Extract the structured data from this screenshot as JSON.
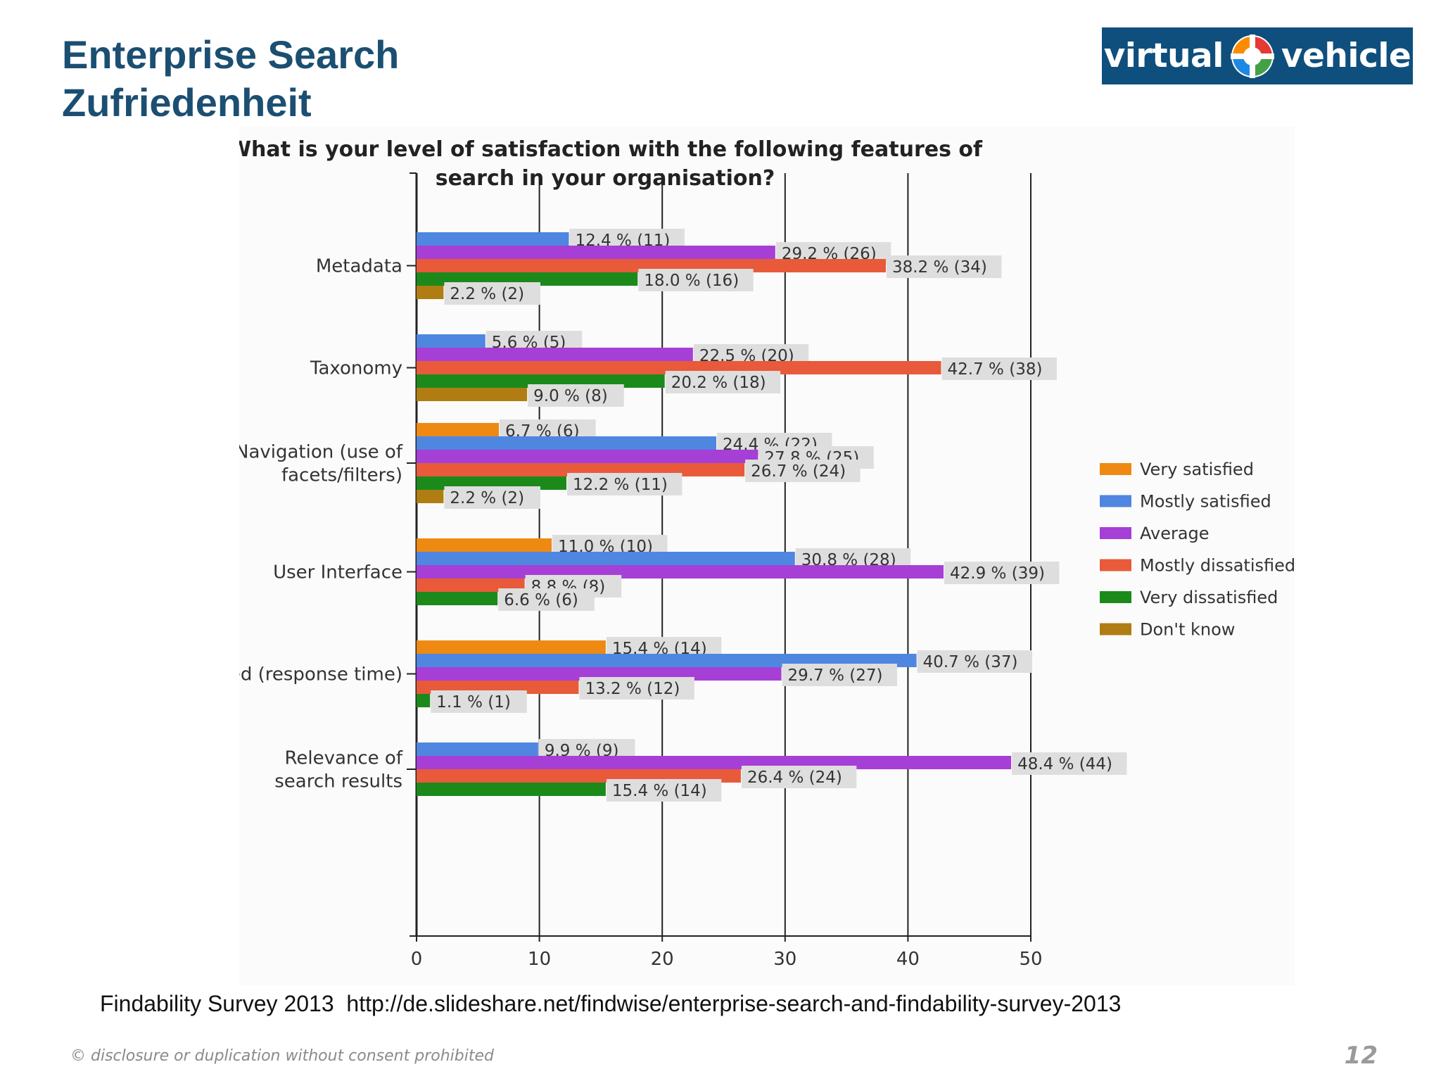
{
  "slide": {
    "title_line1": "Enterprise Search",
    "title_line2": "Zufriedenheit",
    "logo_left": "virtual",
    "logo_right": "vehicle",
    "source": "Findability Survey 2013  http://de.slideshare.net/findwise/enterprise-search-and-findability-survey-2013",
    "footer_note": "© disclosure or duplication without consent prohibited",
    "page_number": "12"
  },
  "chart_data": {
    "type": "bar",
    "orientation": "horizontal",
    "title": "What is your level of satisfaction with the following features of search in your organisation?",
    "title_lines": [
      "What is your level of satisfaction with the following features of",
      "search in your organisation?"
    ],
    "xlim": [
      0,
      50
    ],
    "x_ticks": [
      0,
      10,
      20,
      30,
      40,
      50
    ],
    "grid": "vertical",
    "legend_position": "right",
    "categories": [
      {
        "name": "Metadata",
        "label_lines": [
          "Metadata"
        ]
      },
      {
        "name": "Taxonomy",
        "label_lines": [
          "Taxonomy"
        ]
      },
      {
        "name": "Navigation (use of facets/filters)",
        "label_lines": [
          "Navigation (use of",
          "facets/filters)"
        ]
      },
      {
        "name": "User Interface",
        "label_lines": [
          "User Interface"
        ]
      },
      {
        "name": "Speed (response time)",
        "label_lines": [
          "Speed (response time)"
        ]
      },
      {
        "name": "Relevance of search results",
        "label_lines": [
          "Relevance of",
          "search results"
        ]
      }
    ],
    "series": [
      {
        "name": "Very satisfied",
        "color": "#ee8a12",
        "values": [
          null,
          null,
          6.7,
          11.0,
          15.4,
          null
        ],
        "labels": [
          "",
          "",
          "6.7 % (6)",
          "11.0 % (10)",
          "15.4 % (14)",
          ""
        ]
      },
      {
        "name": "Mostly satisfied",
        "color": "#4f86e0",
        "values": [
          12.4,
          5.6,
          24.4,
          30.8,
          40.7,
          9.9
        ],
        "labels": [
          "12.4 % (11)",
          "5.6 % (5)",
          "24.4 % (22)",
          "30.8 % (28)",
          "40.7 % (37)",
          "9.9 % (9)"
        ]
      },
      {
        "name": "Average",
        "color": "#a63fd6",
        "values": [
          29.2,
          22.5,
          27.8,
          42.9,
          29.7,
          48.4
        ],
        "labels": [
          "29.2 % (26)",
          "22.5 % (20)",
          "27.8 % (25)",
          "42.9 % (39)",
          "29.7 % (27)",
          "48.4 % (44)"
        ]
      },
      {
        "name": "Mostly dissatisfied",
        "color": "#e85a3a",
        "values": [
          38.2,
          42.7,
          26.7,
          8.8,
          13.2,
          26.4
        ],
        "labels": [
          "38.2 % (34)",
          "42.7 % (38)",
          "26.7 % (24)",
          "8.8 % (8)",
          "13.2 % (12)",
          "26.4 % (24)"
        ]
      },
      {
        "name": "Very dissatisfied",
        "color": "#1b8a1b",
        "values": [
          18.0,
          20.2,
          12.2,
          6.6,
          1.1,
          15.4
        ],
        "labels": [
          "18.0 % (16)",
          "20.2 % (18)",
          "12.2 % (11)",
          "6.6 % (6)",
          "1.1 % (1)",
          "15.4 % (14)"
        ]
      },
      {
        "name": "Don't know",
        "color": "#b07d12",
        "values": [
          2.2,
          9.0,
          2.2,
          null,
          null,
          null
        ],
        "labels": [
          "2.2 % (2)",
          "9.0 % (8)",
          "2.2 % (2)",
          "",
          "",
          ""
        ]
      }
    ]
  }
}
